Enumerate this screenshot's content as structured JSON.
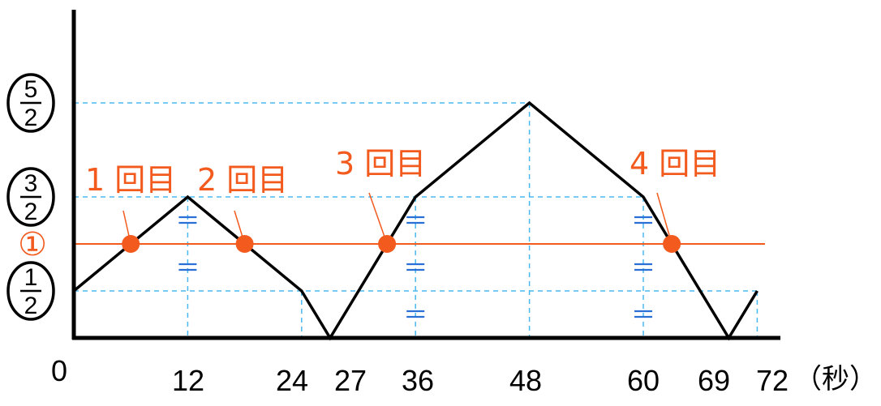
{
  "chart_data": {
    "type": "line",
    "x_unit": "（秒）",
    "x_ticks": [
      "0",
      "12",
      "24",
      "27",
      "36",
      "48",
      "60",
      "69",
      "72"
    ],
    "y_ticks": [
      {
        "value": 0.5,
        "num": "1",
        "den": "2"
      },
      {
        "value": 1,
        "text": "①"
      },
      {
        "value": 1.5,
        "num": "3",
        "den": "2"
      },
      {
        "value": 2.5,
        "num": "5",
        "den": "2"
      }
    ],
    "xlim": [
      0,
      75
    ],
    "ylim": [
      0,
      3.2
    ],
    "series": [
      {
        "x": [
          0,
          12,
          24,
          27,
          36,
          48,
          60,
          69,
          72
        ],
        "y": [
          0.5,
          1.5,
          0.5,
          0,
          1.5,
          2.5,
          1.5,
          0,
          0.5
        ]
      }
    ],
    "reference_line": {
      "y": 1,
      "color": "#f25a1e"
    },
    "crossings": [
      {
        "label": "1 回目",
        "x": 6,
        "y": 1
      },
      {
        "label": "2 回目",
        "x": 18,
        "y": 1
      },
      {
        "label": "3 回目",
        "x": 33,
        "y": 1
      },
      {
        "label": "4 回目",
        "x": 63,
        "y": 1
      }
    ],
    "equal_marks": [
      {
        "x": 12,
        "y": [
          1.25,
          0.75
        ]
      },
      {
        "x": 36,
        "y": [
          1.25,
          0.75,
          0.25
        ]
      },
      {
        "x": 60,
        "y": [
          1.25,
          0.75,
          0.25
        ]
      }
    ],
    "equal_mark_symbol": "=",
    "colors": {
      "line": "#000000",
      "guide": "#4ab8f0",
      "accent": "#f25a1e",
      "mark": "#2a6fd6"
    },
    "grid": false
  }
}
